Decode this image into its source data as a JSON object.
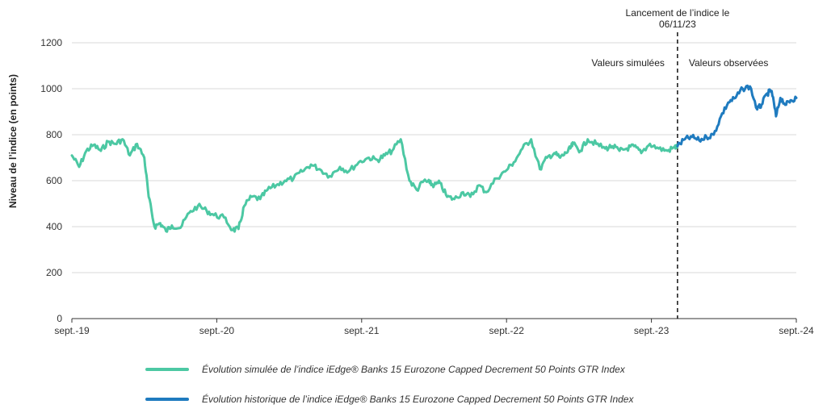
{
  "chart_data": {
    "type": "line",
    "ylabel": "Niveau de l’indice (en points)",
    "xlabel": "",
    "ylim": [
      0,
      1200
    ],
    "yticks": [
      0,
      200,
      400,
      600,
      800,
      1000,
      1200
    ],
    "xlim": [
      2019.67,
      2024.67
    ],
    "xticks": [
      {
        "x": 2019.67,
        "label": "sept.-19"
      },
      {
        "x": 2020.67,
        "label": "sept.-20"
      },
      {
        "x": 2021.67,
        "label": "sept.-21"
      },
      {
        "x": 2022.67,
        "label": "sept.-22"
      },
      {
        "x": 2023.67,
        "label": "sept.-23"
      },
      {
        "x": 2024.67,
        "label": "sept.-24"
      }
    ],
    "grid": "horizontal",
    "legend_position": "bottom",
    "annotations": {
      "launch_line_x": 2023.85,
      "launch_label": [
        "Lancement de l’indice le",
        "06/11/23"
      ],
      "left_label": "Valeurs simulées",
      "right_label": "Valeurs observées"
    },
    "series": [
      {
        "name": "Évolution simulée de l’indice iEdge® Banks 15 Eurozone Capped Decrement 50 Points GTR Index",
        "color": "#4cc8a3",
        "x": [
          2019.67,
          2019.72,
          2019.77,
          2019.82,
          2019.87,
          2019.92,
          2019.97,
          2020.02,
          2020.07,
          2020.12,
          2020.17,
          2020.2,
          2020.24,
          2020.28,
          2020.32,
          2020.36,
          2020.42,
          2020.48,
          2020.54,
          2020.6,
          2020.65,
          2020.72,
          2020.78,
          2020.82,
          2020.86,
          2020.91,
          2020.97,
          2021.02,
          2021.08,
          2021.14,
          2021.2,
          2021.26,
          2021.32,
          2021.38,
          2021.45,
          2021.52,
          2021.58,
          2021.65,
          2021.72,
          2021.78,
          2021.83,
          2021.88,
          2021.94,
          2022.0,
          2022.05,
          2022.1,
          2022.14,
          2022.17,
          2022.21,
          2022.26,
          2022.31,
          2022.37,
          2022.42,
          2022.48,
          2022.53,
          2022.6,
          2022.66,
          2022.72,
          2022.78,
          2022.84,
          2022.9,
          2022.95,
          2023.0,
          2023.04,
          2023.08,
          2023.11,
          2023.13,
          2023.18,
          2023.23,
          2023.29,
          2023.35,
          2023.4,
          2023.45,
          2023.5,
          2023.55,
          2023.6,
          2023.66,
          2023.72,
          2023.78,
          2023.83,
          2023.85
        ],
        "values": [
          710,
          660,
          730,
          755,
          730,
          770,
          760,
          780,
          710,
          760,
          700,
          530,
          400,
          415,
          380,
          405,
          395,
          460,
          490,
          470,
          450,
          440,
          385,
          390,
          490,
          530,
          520,
          560,
          580,
          600,
          610,
          640,
          670,
          650,
          620,
          660,
          640,
          680,
          700,
          690,
          710,
          730,
          780,
          600,
          560,
          600,
          590,
          580,
          590,
          530,
          520,
          550,
          530,
          580,
          550,
          610,
          640,
          680,
          740,
          780,
          650,
          700,
          720,
          700,
          720,
          740,
          760,
          730,
          780,
          760,
          740,
          750,
          730,
          740,
          750,
          720,
          760,
          740,
          730,
          745,
          750
        ]
      },
      {
        "name": "Évolution historique de l’indice iEdge® Banks 15 Eurozone Capped Decrement 50 Points GTR Index",
        "color": "#1f7bbf",
        "x": [
          2023.85,
          2023.9,
          2023.95,
          2024.0,
          2024.05,
          2024.1,
          2024.15,
          2024.2,
          2024.25,
          2024.3,
          2024.35,
          2024.4,
          2024.43,
          2024.47,
          2024.5,
          2024.53,
          2024.56,
          2024.6,
          2024.63,
          2024.67
        ],
        "values": [
          750,
          780,
          790,
          775,
          790,
          800,
          880,
          940,
          960,
          1000,
          1010,
          910,
          930,
          980,
          990,
          880,
          960,
          930,
          950,
          960
        ]
      }
    ]
  }
}
